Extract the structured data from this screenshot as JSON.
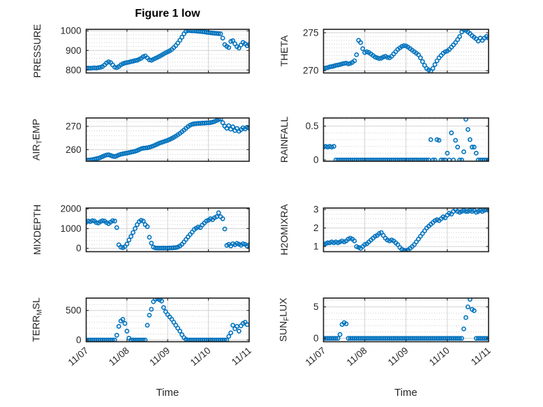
{
  "figure": {
    "title": "Figure 1 low",
    "xlabel": "Time"
  },
  "x_axis": {
    "tick_labels": [
      "11/07",
      "11/08",
      "11/09",
      "11/10",
      "11/11"
    ],
    "range_days": [
      0,
      4
    ]
  },
  "colors": {
    "marker": "#0072BD",
    "axis": "#1f1f1f",
    "major_grid": "#d2d2d2",
    "minor_grid": "#c6c6c6",
    "text": "#262626",
    "title": "#000000",
    "background": "#ffffff"
  },
  "marker": {
    "shape": "open-circle",
    "radius": 2.6,
    "stroke_width": 1.6
  },
  "chart_data": [
    {
      "id": "pressure",
      "type": "scatter",
      "ylabel": "PRESSURE",
      "ylabel_parts": [
        {
          "text": "PRESSURE",
          "sub": false
        }
      ],
      "ylim": [
        785,
        1008
      ],
      "yticks": [
        800,
        900,
        1000
      ],
      "ytick_labels": [
        "800",
        "900",
        "1000"
      ],
      "yminor_step": 20,
      "x_start": 0,
      "x_step": 0.05,
      "values": [
        810,
        810,
        809,
        810,
        811,
        810,
        812,
        814,
        818,
        826,
        836,
        842,
        838,
        826,
        815,
        812,
        818,
        826,
        832,
        836,
        838,
        840,
        843,
        845,
        848,
        850,
        855,
        860,
        868,
        872,
        862,
        852,
        850,
        855,
        860,
        865,
        870,
        876,
        882,
        888,
        893,
        898,
        905,
        915,
        925,
        938,
        952,
        968,
        985,
        998,
        1002,
        1001,
        1000,
        1000,
        999,
        998,
        997,
        996,
        995,
        993,
        992,
        990,
        989,
        988,
        987,
        986,
        985,
        963,
        930,
        921,
        915,
        946,
        950,
        934,
        919,
        912,
        928,
        941,
        934,
        924,
        931
      ]
    },
    {
      "id": "theta",
      "type": "scatter",
      "ylabel": "THETA",
      "ylabel_parts": [
        {
          "text": "THETA",
          "sub": false
        }
      ],
      "ylim": [
        269.7,
        275.45
      ],
      "yticks": [
        270,
        275
      ],
      "ytick_labels": [
        "270",
        "275"
      ],
      "yminor_step": 0.5,
      "x_start": 0,
      "x_step": 0.05,
      "values": [
        270.3,
        270.35,
        270.4,
        270.5,
        270.55,
        270.6,
        270.7,
        270.75,
        270.8,
        270.9,
        270.95,
        271.0,
        270.9,
        270.95,
        271.1,
        271.3,
        272.1,
        274.0,
        273.7,
        272.9,
        272.4,
        272.5,
        272.4,
        272.2,
        272.0,
        271.8,
        271.7,
        271.6,
        271.65,
        271.8,
        271.9,
        271.75,
        271.7,
        271.9,
        272.2,
        272.5,
        272.8,
        273.0,
        273.2,
        273.3,
        273.25,
        273.1,
        272.9,
        272.7,
        272.5,
        272.3,
        272.1,
        271.7,
        271.2,
        270.7,
        270.3,
        270.1,
        269.95,
        270.3,
        270.8,
        271.3,
        271.7,
        272.0,
        272.3,
        272.5,
        272.6,
        272.8,
        273.1,
        273.4,
        273.7,
        274.1,
        274.5,
        275.1,
        275.4,
        275.3,
        275.1,
        274.9,
        274.6,
        274.4,
        274.2,
        273.9,
        274.3,
        274.0,
        274.3,
        274.5,
        274.3
      ]
    },
    {
      "id": "airtemp",
      "type": "scatter",
      "ylabel": "AIR_TEMP",
      "ylabel_parts": [
        {
          "text": "AIR",
          "sub": false
        },
        {
          "text": "T",
          "sub": true
        },
        {
          "text": "EMP",
          "sub": false
        }
      ],
      "ylim": [
        255.0,
        273.6
      ],
      "yticks": [
        260,
        270
      ],
      "ytick_labels": [
        "260",
        "270"
      ],
      "yminor_step": 2,
      "x_start": 0,
      "x_step": 0.05,
      "values": [
        255.4,
        255.5,
        255.6,
        255.7,
        255.9,
        256.1,
        256.3,
        256.6,
        257.0,
        257.4,
        257.7,
        257.8,
        257.5,
        257.2,
        257.0,
        257.3,
        257.7,
        258.0,
        258.2,
        258.4,
        258.5,
        258.7,
        258.9,
        259.1,
        259.3,
        259.6,
        260.0,
        260.4,
        260.6,
        260.7,
        260.8,
        261.0,
        261.3,
        261.6,
        262.0,
        262.4,
        262.8,
        263.1,
        263.4,
        263.7,
        264.0,
        264.4,
        264.8,
        265.3,
        265.8,
        266.4,
        267.0,
        267.7,
        268.4,
        269.2,
        269.9,
        270.5,
        270.9,
        271.1,
        271.2,
        271.3,
        271.3,
        271.4,
        271.4,
        271.5,
        271.5,
        271.6,
        271.8,
        272.1,
        272.5,
        272.9,
        273.2,
        271.6,
        270.1,
        269.2,
        270.3,
        268.8,
        269.8,
        268.2,
        269.1,
        267.9,
        268.6,
        269.4,
        268.9,
        269.6,
        269.2
      ]
    },
    {
      "id": "rainfall",
      "type": "scatter",
      "ylabel": "RAINFALL",
      "ylabel_parts": [
        {
          "text": "RAINFALL",
          "sub": false
        }
      ],
      "ylim": [
        -0.02,
        0.62
      ],
      "yticks": [
        0,
        0.5
      ],
      "ytick_labels": [
        "0",
        "0.5"
      ],
      "yminor_step": 0.1,
      "x_start": 0,
      "x_step": 0.05,
      "values": [
        0.19,
        0.2,
        0.19,
        0.2,
        0.19,
        0.2,
        0,
        0,
        0,
        0,
        0,
        0,
        0,
        0,
        0,
        0,
        0,
        0,
        0,
        0,
        0,
        0,
        0,
        0,
        0,
        0,
        0,
        0,
        0,
        0,
        0,
        0,
        0,
        0,
        0,
        0,
        0,
        0,
        0,
        0,
        0,
        0,
        0,
        0,
        0,
        0,
        0,
        0,
        0,
        0,
        0,
        0,
        0.3,
        0,
        0,
        0.3,
        0.29,
        0,
        0,
        0,
        0.1,
        0,
        0.4,
        0,
        0.29,
        0.19,
        0,
        0,
        0.12,
        0.6,
        0.45,
        0.3,
        0.19,
        0.19,
        0.1,
        0,
        0,
        0,
        0,
        0,
        0
      ]
    },
    {
      "id": "mixdepth",
      "type": "scatter",
      "ylabel": "MIXDEPTH",
      "ylabel_parts": [
        {
          "text": "MIXDEPTH",
          "sub": false
        }
      ],
      "ylim": [
        -170,
        2040
      ],
      "yticks": [
        0,
        1000,
        2000
      ],
      "ytick_labels": [
        "0",
        "1000",
        "2000"
      ],
      "yminor_step": 200,
      "x_start": 0,
      "x_step": 0.05,
      "values": [
        1320,
        1380,
        1350,
        1400,
        1380,
        1300,
        1280,
        1350,
        1400,
        1380,
        1300,
        1250,
        1330,
        1400,
        1380,
        1050,
        180,
        60,
        30,
        80,
        220,
        420,
        600,
        800,
        1000,
        1200,
        1350,
        1420,
        1380,
        1200,
        1100,
        560,
        260,
        60,
        20,
        10,
        10,
        10,
        15,
        10,
        15,
        20,
        20,
        30,
        40,
        60,
        120,
        200,
        320,
        450,
        580,
        700,
        820,
        950,
        1020,
        1080,
        1050,
        1180,
        1280,
        1380,
        1430,
        1500,
        1450,
        1550,
        1600,
        1800,
        1600,
        1500,
        980,
        150,
        200,
        120,
        230,
        180,
        250,
        210,
        160,
        230,
        200,
        120,
        180
      ]
    },
    {
      "id": "h2omixra",
      "type": "scatter",
      "ylabel": "H2OMIXRA",
      "ylabel_parts": [
        {
          "text": "H2OMIXRA",
          "sub": false
        }
      ],
      "ylim": [
        0.72,
        3.08
      ],
      "yticks": [
        1,
        2,
        3
      ],
      "ytick_labels": [
        "1",
        "2",
        "3"
      ],
      "yminor_step": 0.25,
      "x_start": 0,
      "x_step": 0.05,
      "values": [
        1.1,
        1.15,
        1.2,
        1.2,
        1.25,
        1.2,
        1.25,
        1.2,
        1.25,
        1.3,
        1.25,
        1.3,
        1.4,
        1.45,
        1.4,
        1.3,
        1.0,
        0.95,
        0.9,
        1.0,
        1.1,
        1.15,
        1.25,
        1.35,
        1.45,
        1.55,
        1.6,
        1.7,
        1.75,
        1.6,
        1.45,
        1.35,
        1.3,
        1.35,
        1.3,
        1.2,
        1.1,
        0.95,
        0.85,
        0.8,
        0.78,
        0.82,
        0.9,
        1.0,
        1.1,
        1.25,
        1.4,
        1.55,
        1.7,
        1.85,
        2.0,
        2.1,
        2.2,
        2.3,
        2.4,
        2.45,
        2.4,
        2.5,
        2.6,
        2.55,
        2.7,
        2.8,
        2.75,
        2.9,
        3.0,
        2.9,
        2.85,
        2.9,
        2.95,
        2.9,
        2.9,
        2.95,
        2.9,
        2.95,
        2.85,
        2.9,
        2.95,
        2.9,
        2.95,
        3.0,
        2.95
      ]
    },
    {
      "id": "terrmsl",
      "type": "scatter",
      "ylabel": "TERR_MSL",
      "ylabel_parts": [
        {
          "text": "TERR",
          "sub": false
        },
        {
          "text": "M",
          "sub": true
        },
        {
          "text": "SL",
          "sub": false
        }
      ],
      "ylim": [
        -30,
        710
      ],
      "yticks": [
        0,
        500
      ],
      "ytick_labels": [
        "0",
        "500"
      ],
      "yminor_step": 100,
      "x_start": 0,
      "x_step": 0.05,
      "values": [
        0,
        0,
        0,
        0,
        0,
        0,
        0,
        0,
        0,
        0,
        0,
        0,
        0,
        0,
        0,
        80,
        230,
        320,
        350,
        280,
        150,
        30,
        0,
        0,
        0,
        0,
        0,
        0,
        0,
        0,
        250,
        420,
        520,
        650,
        690,
        700,
        680,
        660,
        550,
        480,
        430,
        390,
        350,
        300,
        250,
        200,
        150,
        90,
        40,
        10,
        0,
        0,
        0,
        0,
        0,
        0,
        0,
        0,
        0,
        0,
        0,
        0,
        0,
        0,
        0,
        0,
        0,
        0,
        0,
        0,
        60,
        120,
        250,
        190,
        230,
        150,
        240,
        280,
        300,
        260,
        null
      ]
    },
    {
      "id": "sunflux",
      "type": "scatter",
      "ylabel": "SUN_FLUX",
      "ylabel_parts": [
        {
          "text": "SUN",
          "sub": false
        },
        {
          "text": "F",
          "sub": true
        },
        {
          "text": "LUX",
          "sub": false
        }
      ],
      "ylim": [
        -0.55,
        6.4
      ],
      "yticks": [
        0,
        5
      ],
      "ytick_labels": [
        "0",
        "5"
      ],
      "yminor_step": 1,
      "x_start": 0,
      "x_step": 0.05,
      "values": [
        0,
        0,
        0,
        0,
        0,
        0,
        0,
        0,
        0.6,
        2.2,
        2.5,
        2.3,
        0,
        0,
        0,
        0,
        0,
        0,
        0,
        0,
        0,
        0,
        0,
        0,
        0,
        0,
        0,
        0,
        0,
        0,
        0,
        0,
        0,
        0,
        0,
        0,
        0,
        0,
        0,
        0,
        0,
        0,
        0,
        0,
        0,
        0,
        0,
        0,
        0,
        0,
        0,
        0,
        0,
        0,
        0,
        0,
        0,
        0,
        0,
        0,
        0,
        0,
        0,
        0,
        0,
        0,
        0,
        0,
        1.5,
        3.3,
        5.0,
        6.2,
        4.6,
        4.4,
        0,
        0,
        0,
        0,
        0,
        0,
        0
      ]
    }
  ]
}
